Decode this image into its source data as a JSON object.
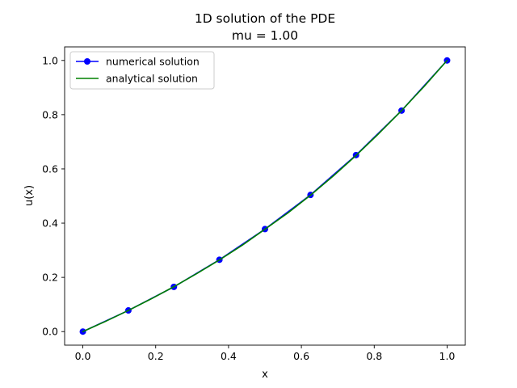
{
  "chart_data": {
    "type": "line",
    "title": "1D solution of the PDE",
    "subtitle": "mu = 1.00",
    "xlabel": "x",
    "ylabel": "u(x)",
    "xlim": [
      -0.05,
      1.05
    ],
    "ylim": [
      -0.05,
      1.05
    ],
    "xticks": [
      "0.0",
      "0.2",
      "0.4",
      "0.6",
      "0.8",
      "1.0"
    ],
    "yticks": [
      "0.0",
      "0.2",
      "0.4",
      "0.6",
      "0.8",
      "1.0"
    ],
    "grid": false,
    "legend_position": "top-left",
    "series": [
      {
        "name": "numerical solution",
        "color": "#0000ff",
        "marker": "circle",
        "x": [
          0.0,
          0.125,
          0.25,
          0.375,
          0.5,
          0.625,
          0.75,
          0.875,
          1.0
        ],
        "y": [
          0.0,
          0.078,
          0.165,
          0.265,
          0.378,
          0.504,
          0.651,
          0.815,
          1.0
        ]
      },
      {
        "name": "analytical solution",
        "color": "#008000",
        "marker": "none",
        "x": [
          0.0,
          0.0625,
          0.125,
          0.1875,
          0.25,
          0.3125,
          0.375,
          0.4375,
          0.5,
          0.5625,
          0.625,
          0.6875,
          0.75,
          0.8125,
          0.875,
          0.9375,
          1.0
        ],
        "y": [
          0.0,
          0.0378,
          0.078,
          0.1206,
          0.1657,
          0.2136,
          0.2644,
          0.3183,
          0.3775,
          0.437,
          0.5031,
          0.5738,
          0.6495,
          0.7303,
          0.8151,
          0.9049,
          1.0
        ]
      }
    ]
  }
}
